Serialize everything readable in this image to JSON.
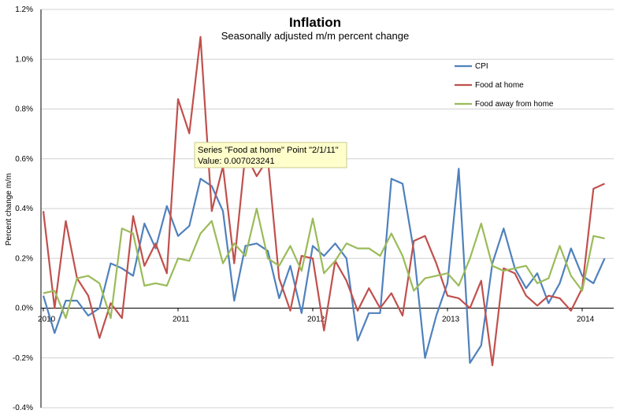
{
  "chart_data": {
    "type": "line",
    "title": "Inflation",
    "subtitle": "Seasonally adjusted m/m percent change",
    "xlabel": "",
    "ylabel": "Percent change m/m",
    "ylim": [
      -0.004,
      0.012
    ],
    "yticks": [
      -0.004,
      -0.002,
      0,
      0.002,
      0.004,
      0.006,
      0.008,
      0.01,
      0.012
    ],
    "ytick_labels": [
      "-0.4%",
      "-0.2%",
      "0.0%",
      "0.2%",
      "0.4%",
      "0.6%",
      "0.8%",
      "1.0%",
      "1.2%"
    ],
    "xticks": [
      {
        "index": 0,
        "label": "2010"
      },
      {
        "index": 12,
        "label": "2011"
      },
      {
        "index": 24,
        "label": "2012"
      },
      {
        "index": 36,
        "label": "2013"
      },
      {
        "index": 48,
        "label": "2014"
      }
    ],
    "x_start": "2010-01",
    "grid": true,
    "legend_position": "right",
    "series": [
      {
        "name": "CPI",
        "color": "#4f81bd",
        "values": [
          0.0005,
          -0.001,
          0.0003,
          0.0003,
          -0.0003,
          0,
          0.0018,
          0.0016,
          0.0013,
          0.0034,
          0.0024,
          0.0041,
          0.0029,
          0.0033,
          0.0052,
          0.0049,
          0.0039,
          0.0003,
          0.0025,
          0.0026,
          0.0023,
          0.0004,
          0.0017,
          -0.0002,
          0.0025,
          0.0021,
          0.0026,
          0.002,
          -0.0013,
          -0.0002,
          -0.0002,
          0.0052,
          0.005,
          0.0023,
          -0.002,
          -0.0003,
          0.001,
          0.0056,
          -0.0022,
          -0.0015,
          0.0018,
          0.0032,
          0.0016,
          0.0008,
          0.0014,
          0.0002,
          0.001,
          0.0024,
          0.0013,
          0.001,
          0.002
        ]
      },
      {
        "name": "Food at home",
        "color": "#c0504d",
        "values": [
          0.0039,
          0,
          0.0035,
          0.0012,
          0.0005,
          -0.0012,
          0.0002,
          -0.0004,
          0.0037,
          0.0017,
          0.0026,
          0.0014,
          0.0084,
          0.007023241,
          0.0109,
          0.0039,
          0.0057,
          0.0018,
          0.0062,
          0.0053,
          0.006,
          0.0012,
          -0.0001,
          0.0021,
          0.002,
          -0.0009,
          0.0019,
          0.0011,
          -0.0001,
          0.0008,
          0,
          0.0006,
          -0.0003,
          0.0027,
          0.0029,
          0.0018,
          0.0005,
          0.0004,
          0,
          0.0011,
          -0.0023,
          0.0016,
          0.0014,
          0.0005,
          0.0001,
          0.0005,
          0.0004,
          -0.0001,
          0.0008,
          0.0048,
          0.005
        ]
      },
      {
        "name": "Food away from home",
        "color": "#9bbb59",
        "values": [
          0.0006,
          0.0007,
          -0.0004,
          0.0012,
          0.0013,
          0.001,
          -0.0004,
          0.0032,
          0.003,
          0.0009,
          0.001,
          0.0009,
          0.002,
          0.0019,
          0.003,
          0.0035,
          0.0018,
          0.0026,
          0.0021,
          0.004,
          0.002,
          0.0017,
          0.0025,
          0.0015,
          0.0036,
          0.0014,
          0.0019,
          0.0026,
          0.0024,
          0.0024,
          0.0021,
          0.003,
          0.0021,
          0.0007,
          0.0012,
          0.0013,
          0.0014,
          0.0009,
          0.002,
          0.0034,
          0.0017,
          0.0015,
          0.0016,
          0.0017,
          0.001,
          0.0012,
          0.0025,
          0.0013,
          0.0007,
          0.0029,
          0.0028
        ]
      }
    ],
    "tooltip": {
      "line1": "Series \"Food at home\" Point \"2/1/11\"",
      "line2": "Value: 0.007023241",
      "series_index": 1,
      "point_index": 13
    }
  }
}
